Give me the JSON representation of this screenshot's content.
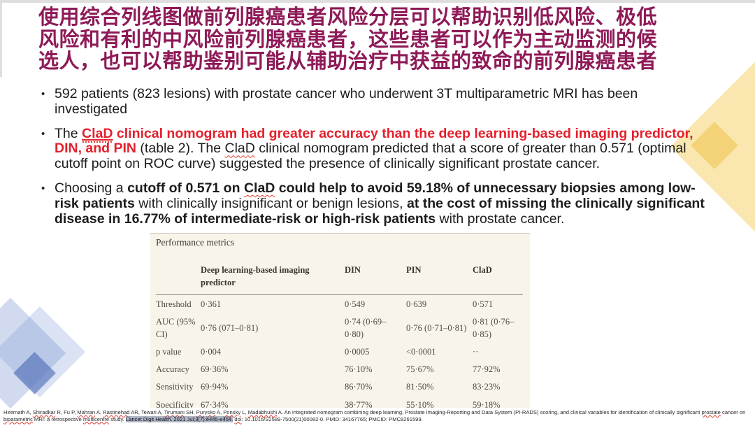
{
  "slide": {
    "title": {
      "lines": [
        "使用综合列线图做前列腺癌患者风险分层可以帮助识别低风险、极低",
        "风险和有利的中风险前列腺癌患者，这些患者可以作为主动监测的候",
        "选人，也可以帮助鉴别可能从辅助治疗中获益的致命的前列腺癌患者"
      ]
    },
    "bullets": [
      {
        "segments": [
          {
            "text": "592 patients (823 lesions) with prostate cancer who underwent 3T multiparametric MRI has been investigated",
            "cls": ""
          }
        ]
      },
      {
        "segments": [
          {
            "text": "The ",
            "cls": ""
          },
          {
            "text": "ClaD",
            "cls": "redbold redlink"
          },
          {
            "text": " clinical nomogram had greater accuracy than the deep learning-based imaging predictor, DIN, and PIN",
            "cls": "redbold"
          },
          {
            "text": " (table 2). The ",
            "cls": ""
          },
          {
            "text": "ClaD",
            "cls": "sq"
          },
          {
            "text": " clinical nomogram predicted that a score of greater than 0.571 (optimal cutoff point on ROC curve) suggested the presence of clinically significant prostate cancer.",
            "cls": ""
          }
        ]
      },
      {
        "segments": [
          {
            "text": "Choosing a ",
            "cls": ""
          },
          {
            "text": "cutoff of 0.571 on ",
            "cls": "b"
          },
          {
            "text": "ClaD",
            "cls": "b sq"
          },
          {
            "text": " could help to avoid 59.18% of unnecessary biopsies among low-risk patients",
            "cls": "b"
          },
          {
            "text": " with clinically insignificant or benign lesions, ",
            "cls": ""
          },
          {
            "text": "at the cost of missing the clinically significant disease in 16.77% of intermediate-risk or high-risk patients",
            "cls": "b"
          },
          {
            "text": " with prostate cancer.",
            "cls": ""
          }
        ]
      }
    ],
    "table": {
      "caption": "Performance metrics",
      "columns": [
        "",
        "Deep learning-based imaging predictor",
        "DIN",
        "PIN",
        "ClaD"
      ],
      "rows": [
        [
          "Threshold",
          "0·361",
          "0·549",
          "0·639",
          "0·571"
        ],
        [
          "AUC (95% CI)",
          "0·76 (071–0·81)",
          "0·74 (0·69–0·80)",
          "0·76 (0·71–0·81)",
          "0·81 (0·76–0·85)"
        ],
        [
          "p value",
          "0·004",
          "0·0005",
          "<0·0001",
          "··"
        ],
        [
          "Accuracy",
          "69·36%",
          "76·10%",
          "75·67%",
          "77·92%"
        ],
        [
          "Sensitivity",
          "69·94%",
          "86·70%",
          "81·50%",
          "83·23%"
        ],
        [
          "Specificity",
          "67·34%",
          "38·77%",
          "55·10%",
          "59·18%"
        ]
      ]
    },
    "citation": {
      "segments": [
        {
          "text": "Hiremath A, ",
          "cls": ""
        },
        {
          "text": "Shiradkar",
          "cls": "cw"
        },
        {
          "text": " R, Fu P, ",
          "cls": ""
        },
        {
          "text": "Mahran",
          "cls": "cw"
        },
        {
          "text": " A, ",
          "cls": ""
        },
        {
          "text": "Rastinehad",
          "cls": "cw"
        },
        {
          "text": " AR, Tewari A, ",
          "cls": ""
        },
        {
          "text": "Tirumani",
          "cls": "cw"
        },
        {
          "text": " SH, ",
          "cls": ""
        },
        {
          "text": "Purysko",
          "cls": "cw"
        },
        {
          "text": " A, ",
          "cls": ""
        },
        {
          "text": "Ponsky",
          "cls": "cw"
        },
        {
          "text": " L, ",
          "cls": ""
        },
        {
          "text": "Madabhushi",
          "cls": "cw"
        },
        {
          "text": " A. An integrated nomogram combining deep learning, Prostate Imaging-Reporting and Data System (PI-RADS) scoring, and clinical variables for identification of clinically significant ",
          "cls": ""
        },
        {
          "text": "prostate",
          "cls": "cw"
        },
        {
          "text": " cancer on ",
          "cls": ""
        },
        {
          "text": "biparametric",
          "cls": "cw"
        },
        {
          "text": " MRI: a retrospective ",
          "cls": ""
        },
        {
          "text": "multicentre",
          "cls": "cw"
        },
        {
          "text": " study. ",
          "cls": ""
        },
        {
          "text": "Lancet Digit Health. 2021 Jul;3(7):e445-e454.",
          "cls": "hl"
        },
        {
          "text": " ",
          "cls": ""
        },
        {
          "text": "doi",
          "cls": "cw"
        },
        {
          "text": ": 10.1016/S2589-7500(21)00082-0. PMID: 34167765; PMCID: PMC8261599.",
          "cls": ""
        }
      ]
    },
    "colors": {
      "title": "#8E1A57",
      "emphasis_red": "#E4202C",
      "spellcheck_red": "#E23B32",
      "table_background": "#F8F4E9",
      "accent_yellow": "#F2CE79",
      "accent_blue": "#8FA6D6",
      "citation_highlight": "#8E9DB5"
    }
  }
}
